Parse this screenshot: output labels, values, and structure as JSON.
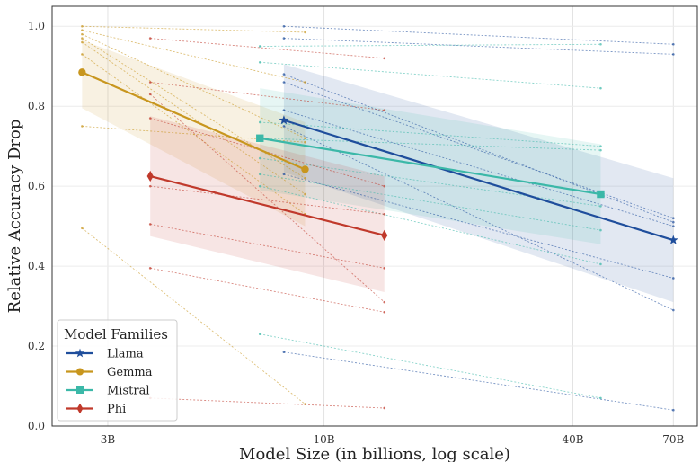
{
  "chart_data": {
    "type": "line",
    "xlabel": "Model Size (in billions, log scale)",
    "ylabel": "Relative Accuracy Drop",
    "x_scale": "log",
    "xlim": [
      2.2,
      80
    ],
    "ylim": [
      0,
      1.05
    ],
    "x_ticks": [
      {
        "value": 3,
        "label": "3B"
      },
      {
        "value": 10,
        "label": "10B"
      },
      {
        "value": 40,
        "label": "40B"
      },
      {
        "value": 70,
        "label": "70B"
      }
    ],
    "y_ticks": [
      0.0,
      0.2,
      0.4,
      0.6,
      0.8,
      1.0
    ],
    "y_tick_labels": [
      "0.0",
      "0.2",
      "0.4",
      "0.6",
      "0.8",
      "1.0"
    ],
    "grid": true,
    "legend": {
      "title": "Model Families",
      "placement": "lower-left"
    },
    "series": [
      {
        "name": "Llama",
        "color": "#1f4e9c",
        "marker": "star",
        "x": [
          8,
          70
        ],
        "y": [
          0.765,
          0.465
        ],
        "band_upper": [
          0.905,
          0.62
        ],
        "band_lower": [
          0.635,
          0.31
        ],
        "tasks": [
          [
            [
              8,
              1.0
            ],
            [
              70,
              0.955
            ]
          ],
          [
            [
              8,
              0.97
            ],
            [
              70,
              0.93
            ]
          ],
          [
            [
              8,
              0.88
            ],
            [
              70,
              0.51
            ]
          ],
          [
            [
              8,
              0.86
            ],
            [
              70,
              0.52
            ]
          ],
          [
            [
              8,
              0.79
            ],
            [
              70,
              0.5
            ]
          ],
          [
            [
              8,
              0.75
            ],
            [
              70,
              0.29
            ]
          ],
          [
            [
              8,
              0.63
            ],
            [
              70,
              0.37
            ]
          ],
          [
            [
              8,
              0.185
            ],
            [
              70,
              0.04
            ]
          ]
        ]
      },
      {
        "name": "Gemma",
        "color": "#c8961e",
        "marker": "circle",
        "x": [
          2.6,
          9
        ],
        "y": [
          0.885,
          0.642
        ],
        "band_upper": [
          0.965,
          0.76
        ],
        "band_lower": [
          0.795,
          0.5
        ],
        "tasks": [
          [
            [
              2.6,
              1.0
            ],
            [
              9,
              0.985
            ]
          ],
          [
            [
              2.6,
              0.99
            ],
            [
              9,
              0.86
            ]
          ],
          [
            [
              2.6,
              0.98
            ],
            [
              9,
              0.72
            ]
          ],
          [
            [
              2.6,
              0.97
            ],
            [
              9,
              0.62
            ]
          ],
          [
            [
              2.6,
              0.96
            ],
            [
              9,
              0.58
            ]
          ],
          [
            [
              2.6,
              0.93
            ],
            [
              9,
              0.53
            ]
          ],
          [
            [
              2.6,
              0.75
            ],
            [
              9,
              0.71
            ]
          ],
          [
            [
              2.6,
              0.495
            ],
            [
              9,
              0.055
            ]
          ]
        ]
      },
      {
        "name": "Mistral",
        "color": "#3bb8a8",
        "marker": "square",
        "x": [
          7,
          46.7
        ],
        "y": [
          0.72,
          0.58
        ],
        "band_upper": [
          0.845,
          0.705
        ],
        "band_lower": [
          0.59,
          0.455
        ],
        "tasks": [
          [
            [
              7,
              0.95
            ],
            [
              46.7,
              0.955
            ]
          ],
          [
            [
              7,
              0.91
            ],
            [
              46.7,
              0.845
            ]
          ],
          [
            [
              7,
              0.76
            ],
            [
              46.7,
              0.7
            ]
          ],
          [
            [
              7,
              0.72
            ],
            [
              46.7,
              0.69
            ]
          ],
          [
            [
              7,
              0.67
            ],
            [
              46.7,
              0.55
            ]
          ],
          [
            [
              7,
              0.63
            ],
            [
              46.7,
              0.49
            ]
          ],
          [
            [
              7,
              0.6
            ],
            [
              46.7,
              0.405
            ]
          ],
          [
            [
              7,
              0.23
            ],
            [
              46.7,
              0.07
            ]
          ]
        ]
      },
      {
        "name": "Phi",
        "color": "#c0392b",
        "marker": "diamond",
        "x": [
          3.8,
          14
        ],
        "y": [
          0.625,
          0.477
        ],
        "band_upper": [
          0.775,
          0.625
        ],
        "band_lower": [
          0.475,
          0.335
        ],
        "tasks": [
          [
            [
              3.8,
              0.97
            ],
            [
              14,
              0.92
            ]
          ],
          [
            [
              3.8,
              0.86
            ],
            [
              14,
              0.79
            ]
          ],
          [
            [
              3.8,
              0.83
            ],
            [
              14,
              0.31
            ]
          ],
          [
            [
              3.8,
              0.77
            ],
            [
              14,
              0.6
            ]
          ],
          [
            [
              3.8,
              0.6
            ],
            [
              14,
              0.53
            ]
          ],
          [
            [
              3.8,
              0.505
            ],
            [
              14,
              0.395
            ]
          ],
          [
            [
              3.8,
              0.395
            ],
            [
              14,
              0.285
            ]
          ],
          [
            [
              3.8,
              0.07
            ],
            [
              14,
              0.045
            ]
          ]
        ]
      }
    ]
  }
}
